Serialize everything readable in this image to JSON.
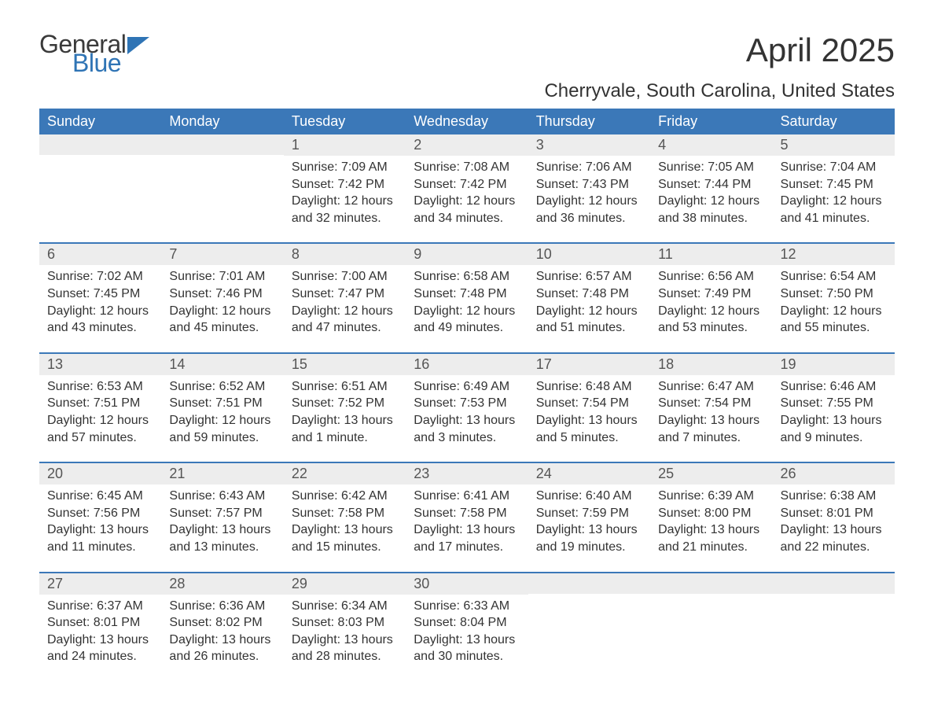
{
  "brand": {
    "word1": "General",
    "word2": "Blue",
    "accent_color": "#2f74b5"
  },
  "title": "April 2025",
  "location": "Cherryvale, South Carolina, United States",
  "colors": {
    "header_bg": "#3b78b8",
    "header_text": "#ffffff",
    "daynum_bg": "#ededed",
    "row_divider": "#3b78b8",
    "body_text": "#333333",
    "page_bg": "#ffffff"
  },
  "typography": {
    "title_fontsize": 42,
    "location_fontsize": 24,
    "header_fontsize": 18,
    "daynum_fontsize": 18,
    "body_fontsize": 16
  },
  "weekdays": [
    "Sunday",
    "Monday",
    "Tuesday",
    "Wednesday",
    "Thursday",
    "Friday",
    "Saturday"
  ],
  "calendar": {
    "type": "table",
    "columns": 7,
    "rows": 5,
    "weeks": [
      [
        {
          "day": "",
          "sunrise": "",
          "sunset": "",
          "daylight1": "",
          "daylight2": ""
        },
        {
          "day": "",
          "sunrise": "",
          "sunset": "",
          "daylight1": "",
          "daylight2": ""
        },
        {
          "day": "1",
          "sunrise": "Sunrise: 7:09 AM",
          "sunset": "Sunset: 7:42 PM",
          "daylight1": "Daylight: 12 hours",
          "daylight2": "and 32 minutes."
        },
        {
          "day": "2",
          "sunrise": "Sunrise: 7:08 AM",
          "sunset": "Sunset: 7:42 PM",
          "daylight1": "Daylight: 12 hours",
          "daylight2": "and 34 minutes."
        },
        {
          "day": "3",
          "sunrise": "Sunrise: 7:06 AM",
          "sunset": "Sunset: 7:43 PM",
          "daylight1": "Daylight: 12 hours",
          "daylight2": "and 36 minutes."
        },
        {
          "day": "4",
          "sunrise": "Sunrise: 7:05 AM",
          "sunset": "Sunset: 7:44 PM",
          "daylight1": "Daylight: 12 hours",
          "daylight2": "and 38 minutes."
        },
        {
          "day": "5",
          "sunrise": "Sunrise: 7:04 AM",
          "sunset": "Sunset: 7:45 PM",
          "daylight1": "Daylight: 12 hours",
          "daylight2": "and 41 minutes."
        }
      ],
      [
        {
          "day": "6",
          "sunrise": "Sunrise: 7:02 AM",
          "sunset": "Sunset: 7:45 PM",
          "daylight1": "Daylight: 12 hours",
          "daylight2": "and 43 minutes."
        },
        {
          "day": "7",
          "sunrise": "Sunrise: 7:01 AM",
          "sunset": "Sunset: 7:46 PM",
          "daylight1": "Daylight: 12 hours",
          "daylight2": "and 45 minutes."
        },
        {
          "day": "8",
          "sunrise": "Sunrise: 7:00 AM",
          "sunset": "Sunset: 7:47 PM",
          "daylight1": "Daylight: 12 hours",
          "daylight2": "and 47 minutes."
        },
        {
          "day": "9",
          "sunrise": "Sunrise: 6:58 AM",
          "sunset": "Sunset: 7:48 PM",
          "daylight1": "Daylight: 12 hours",
          "daylight2": "and 49 minutes."
        },
        {
          "day": "10",
          "sunrise": "Sunrise: 6:57 AM",
          "sunset": "Sunset: 7:48 PM",
          "daylight1": "Daylight: 12 hours",
          "daylight2": "and 51 minutes."
        },
        {
          "day": "11",
          "sunrise": "Sunrise: 6:56 AM",
          "sunset": "Sunset: 7:49 PM",
          "daylight1": "Daylight: 12 hours",
          "daylight2": "and 53 minutes."
        },
        {
          "day": "12",
          "sunrise": "Sunrise: 6:54 AM",
          "sunset": "Sunset: 7:50 PM",
          "daylight1": "Daylight: 12 hours",
          "daylight2": "and 55 minutes."
        }
      ],
      [
        {
          "day": "13",
          "sunrise": "Sunrise: 6:53 AM",
          "sunset": "Sunset: 7:51 PM",
          "daylight1": "Daylight: 12 hours",
          "daylight2": "and 57 minutes."
        },
        {
          "day": "14",
          "sunrise": "Sunrise: 6:52 AM",
          "sunset": "Sunset: 7:51 PM",
          "daylight1": "Daylight: 12 hours",
          "daylight2": "and 59 minutes."
        },
        {
          "day": "15",
          "sunrise": "Sunrise: 6:51 AM",
          "sunset": "Sunset: 7:52 PM",
          "daylight1": "Daylight: 13 hours",
          "daylight2": "and 1 minute."
        },
        {
          "day": "16",
          "sunrise": "Sunrise: 6:49 AM",
          "sunset": "Sunset: 7:53 PM",
          "daylight1": "Daylight: 13 hours",
          "daylight2": "and 3 minutes."
        },
        {
          "day": "17",
          "sunrise": "Sunrise: 6:48 AM",
          "sunset": "Sunset: 7:54 PM",
          "daylight1": "Daylight: 13 hours",
          "daylight2": "and 5 minutes."
        },
        {
          "day": "18",
          "sunrise": "Sunrise: 6:47 AM",
          "sunset": "Sunset: 7:54 PM",
          "daylight1": "Daylight: 13 hours",
          "daylight2": "and 7 minutes."
        },
        {
          "day": "19",
          "sunrise": "Sunrise: 6:46 AM",
          "sunset": "Sunset: 7:55 PM",
          "daylight1": "Daylight: 13 hours",
          "daylight2": "and 9 minutes."
        }
      ],
      [
        {
          "day": "20",
          "sunrise": "Sunrise: 6:45 AM",
          "sunset": "Sunset: 7:56 PM",
          "daylight1": "Daylight: 13 hours",
          "daylight2": "and 11 minutes."
        },
        {
          "day": "21",
          "sunrise": "Sunrise: 6:43 AM",
          "sunset": "Sunset: 7:57 PM",
          "daylight1": "Daylight: 13 hours",
          "daylight2": "and 13 minutes."
        },
        {
          "day": "22",
          "sunrise": "Sunrise: 6:42 AM",
          "sunset": "Sunset: 7:58 PM",
          "daylight1": "Daylight: 13 hours",
          "daylight2": "and 15 minutes."
        },
        {
          "day": "23",
          "sunrise": "Sunrise: 6:41 AM",
          "sunset": "Sunset: 7:58 PM",
          "daylight1": "Daylight: 13 hours",
          "daylight2": "and 17 minutes."
        },
        {
          "day": "24",
          "sunrise": "Sunrise: 6:40 AM",
          "sunset": "Sunset: 7:59 PM",
          "daylight1": "Daylight: 13 hours",
          "daylight2": "and 19 minutes."
        },
        {
          "day": "25",
          "sunrise": "Sunrise: 6:39 AM",
          "sunset": "Sunset: 8:00 PM",
          "daylight1": "Daylight: 13 hours",
          "daylight2": "and 21 minutes."
        },
        {
          "day": "26",
          "sunrise": "Sunrise: 6:38 AM",
          "sunset": "Sunset: 8:01 PM",
          "daylight1": "Daylight: 13 hours",
          "daylight2": "and 22 minutes."
        }
      ],
      [
        {
          "day": "27",
          "sunrise": "Sunrise: 6:37 AM",
          "sunset": "Sunset: 8:01 PM",
          "daylight1": "Daylight: 13 hours",
          "daylight2": "and 24 minutes."
        },
        {
          "day": "28",
          "sunrise": "Sunrise: 6:36 AM",
          "sunset": "Sunset: 8:02 PM",
          "daylight1": "Daylight: 13 hours",
          "daylight2": "and 26 minutes."
        },
        {
          "day": "29",
          "sunrise": "Sunrise: 6:34 AM",
          "sunset": "Sunset: 8:03 PM",
          "daylight1": "Daylight: 13 hours",
          "daylight2": "and 28 minutes."
        },
        {
          "day": "30",
          "sunrise": "Sunrise: 6:33 AM",
          "sunset": "Sunset: 8:04 PM",
          "daylight1": "Daylight: 13 hours",
          "daylight2": "and 30 minutes."
        },
        {
          "day": "",
          "sunrise": "",
          "sunset": "",
          "daylight1": "",
          "daylight2": ""
        },
        {
          "day": "",
          "sunrise": "",
          "sunset": "",
          "daylight1": "",
          "daylight2": ""
        },
        {
          "day": "",
          "sunrise": "",
          "sunset": "",
          "daylight1": "",
          "daylight2": ""
        }
      ]
    ]
  }
}
